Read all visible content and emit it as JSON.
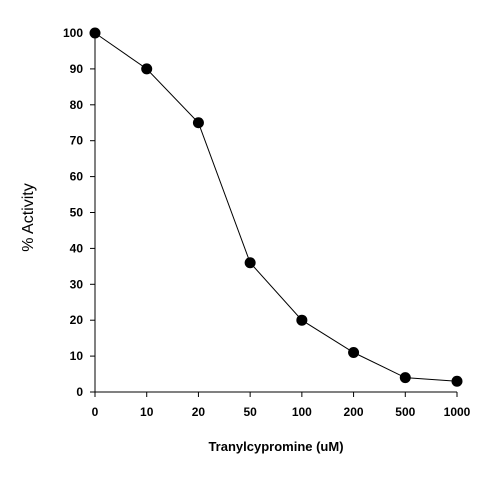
{
  "chart_data": {
    "type": "line",
    "title": "",
    "xlabel": "Tranylcypromine (uM)",
    "ylabel": "% Activity",
    "categories": [
      "0",
      "10",
      "20",
      "50",
      "100",
      "200",
      "500",
      "1000"
    ],
    "series": [
      {
        "values": [
          100,
          90,
          75,
          36,
          20,
          11,
          4,
          3
        ],
        "color": "#000000",
        "marker": "circle"
      }
    ],
    "ylim": [
      0,
      100
    ],
    "yticks": [
      0,
      10,
      20,
      30,
      40,
      50,
      60,
      70,
      80,
      90,
      100
    ],
    "grid": false,
    "legend": "none"
  }
}
